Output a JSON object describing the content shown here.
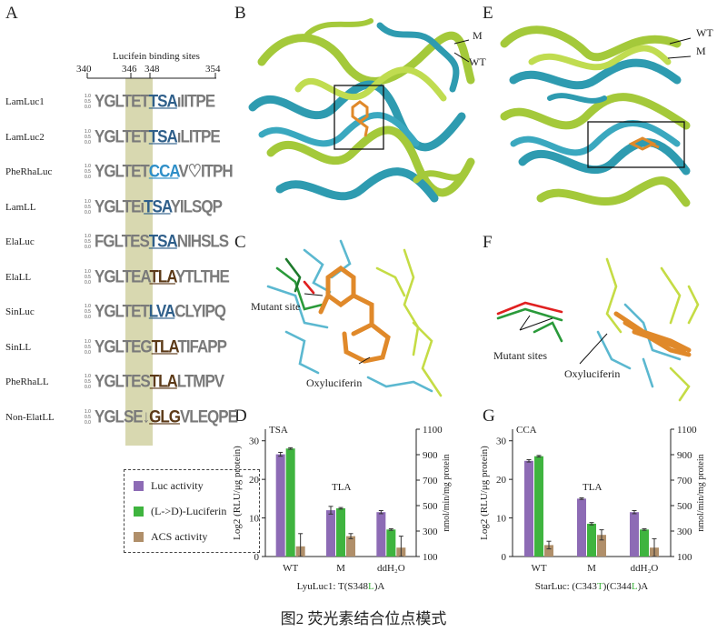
{
  "panel_labels": {
    "A": "A",
    "B": "B",
    "C": "C",
    "D": "D",
    "E": "E",
    "F": "F",
    "G": "G"
  },
  "panel_a": {
    "title": "Lucifein binding sites",
    "positions": [
      "340",
      "346",
      "348",
      "354"
    ],
    "rows": [
      {
        "label": "LamLuc1",
        "pre": "YGLTET",
        "site": "TSA",
        "post": "ıIITPE",
        "site_style": "hl"
      },
      {
        "label": "LamLuc2",
        "pre": "YGLTET",
        "site": "TSA",
        "post": "ıLITPE",
        "site_style": "hl"
      },
      {
        "label": "PheRhaLuc",
        "pre": "YGLTET",
        "site": "CCA",
        "post": "V♡ITPH",
        "site_style": "hl3"
      },
      {
        "label": "LamLL",
        "pre": "YGLTEı",
        "site": "TSA",
        "post": "YILSQP",
        "site_style": "hl"
      },
      {
        "label": "ElaLuc",
        "pre": "FGLTES",
        "site": "TSA",
        "post": "NIHSLS",
        "site_style": "hl"
      },
      {
        "label": "ElaLL",
        "pre": "YGLTEA",
        "site": "TLA",
        "post": "YTLTHE",
        "site_style": "hl2"
      },
      {
        "label": "SinLuc",
        "pre": "YGLTET",
        "site": "LVA",
        "post": "CLYIPQ",
        "site_style": "hl"
      },
      {
        "label": "SinLL",
        "pre": "YGLTEG",
        "site": "TLA",
        "post": "TIFAPP",
        "site_style": "hl2"
      },
      {
        "label": "PheRhaLL",
        "pre": "YGLTES",
        "site": "TLA",
        "post": "LTMPV",
        "site_style": "hl2"
      },
      {
        "label": "Non-ElatLL",
        "pre": "YGLSE↓",
        "site": "GLG",
        "post": "VLEQPE",
        "site_style": "hl2"
      }
    ],
    "scale_ticks": [
      "1.0",
      "0.5",
      "0.0"
    ]
  },
  "legend": {
    "items": [
      {
        "label": "Luc activity",
        "color": "#8d6bb5"
      },
      {
        "label": "(L->D)-Luciferin",
        "color": "#3fb43f"
      },
      {
        "label": "ACS activity",
        "color": "#b08f6a"
      }
    ]
  },
  "panel_b": {
    "labels": [
      "M",
      "WT"
    ]
  },
  "panel_e": {
    "labels": [
      "WT",
      "M"
    ]
  },
  "panel_c": {
    "labels": [
      "Mutant site",
      "Oxyluciferin"
    ]
  },
  "panel_f": {
    "labels": [
      "Mutant sites",
      "Oxyluciferin"
    ]
  },
  "chart_data": [
    {
      "type": "bar",
      "panel": "D",
      "annotation_top": "TSA",
      "annotation_mid": "TLA",
      "categories": [
        "WT",
        "M",
        "ddH₂O"
      ],
      "series": [
        {
          "name": "Luc activity",
          "color": "#8d6bb5",
          "values": [
            26.5,
            12,
            11.5
          ],
          "errors": [
            0.5,
            1,
            0.4
          ],
          "axis": "left"
        },
        {
          "name": "(L->D)-Luciferin",
          "color": "#3fb43f",
          "values": [
            28,
            12.5,
            7
          ],
          "errors": [
            0.2,
            0.2,
            0.2
          ],
          "axis": "left"
        },
        {
          "name": "ACS activity",
          "color": "#b08f6a",
          "values": [
            180,
            260,
            170
          ],
          "errors": [
            100,
            20,
            90
          ],
          "axis": "right"
        }
      ],
      "ylabel": "Log2 (RLU/μg protein)",
      "ylabel_right": "nmol/min/mg protein",
      "ylim": [
        0,
        33
      ],
      "yticks": [
        "0",
        "10",
        "20",
        "30"
      ],
      "ylim_right": [
        100,
        1100
      ],
      "yticks_right": [
        "100",
        "300",
        "500",
        "700",
        "900",
        "1100"
      ],
      "xlabel_parts": {
        "pre": "LyuLuc1: T(S348",
        "mut": "L",
        "post": ")A"
      }
    },
    {
      "type": "bar",
      "panel": "G",
      "annotation_top": "CCA",
      "annotation_mid": "TLA",
      "categories": [
        "WT",
        "M",
        "ddH₂O"
      ],
      "series": [
        {
          "name": "Luc activity",
          "color": "#8d6bb5",
          "values": [
            24.8,
            15,
            11.5
          ],
          "errors": [
            0.3,
            0.2,
            0.4
          ],
          "axis": "left"
        },
        {
          "name": "(L->D)-Luciferin",
          "color": "#3fb43f",
          "values": [
            26,
            8.5,
            7
          ],
          "errors": [
            0.2,
            0.3,
            0.2
          ],
          "axis": "left"
        },
        {
          "name": "ACS activity",
          "color": "#b08f6a",
          "values": [
            190,
            270,
            170
          ],
          "errors": [
            30,
            40,
            70
          ],
          "axis": "right"
        }
      ],
      "ylabel": "Log2 (RLU/μg protein)",
      "ylabel_right": "nmol/min/mg protein",
      "ylim": [
        0,
        33
      ],
      "yticks": [
        "0",
        "10",
        "20",
        "30"
      ],
      "ylim_right": [
        100,
        1100
      ],
      "yticks_right": [
        "100",
        "300",
        "500",
        "700",
        "900",
        "1100"
      ],
      "xlabel_parts": {
        "pre": "StarLuc: (C343",
        "mut1": "T",
        "mid": ")(C344",
        "mut2": "L",
        "post": ")A"
      }
    }
  ],
  "caption": "图2 荧光素结合位点模式"
}
